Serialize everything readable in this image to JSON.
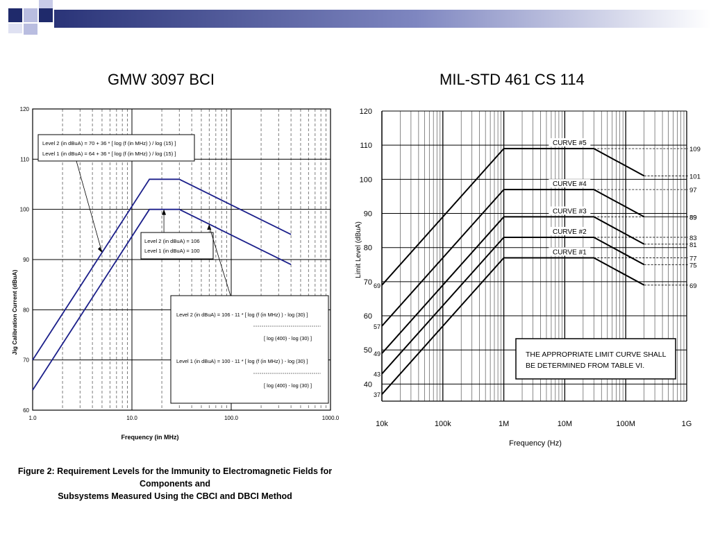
{
  "slide": {
    "title_left": "GMW 3097 BCI",
    "title_right": "MIL-STD 461 CS 114",
    "caption_line1": "Figure 2: Requirement Levels for the Immunity to Electromagnetic Fields for Components and",
    "caption_line2": "Subsystems Measured Using the CBCI and DBCI Method",
    "header_colors": {
      "navy": "#1f2a6b",
      "light": "#b9bde0",
      "mid": "#8a91c6"
    }
  },
  "chart_data": [
    {
      "type": "line",
      "title": "GMW 3097 BCI",
      "xlabel": "Frequency (in MHz)",
      "ylabel": "Jig Calibration Current (dBuA)",
      "xscale": "log",
      "xlim": [
        1.0,
        1000.0
      ],
      "ylim": [
        60,
        120
      ],
      "xticks": [
        "1.0",
        "10.0",
        "100.0",
        "1000.0"
      ],
      "yticks": [
        "60",
        "70",
        "80",
        "90",
        "100",
        "110",
        "120"
      ],
      "grid": true,
      "line_color": "#1b1f8a",
      "series": [
        {
          "name": "Level 2",
          "x": [
            1.0,
            15,
            30,
            400
          ],
          "y": [
            70,
            106,
            106,
            95
          ]
        },
        {
          "name": "Level 1",
          "x": [
            1.0,
            15,
            30,
            400
          ],
          "y": [
            64,
            100,
            100,
            89
          ]
        }
      ],
      "annotations": {
        "box1": [
          "Level 2 (in dBuA) = 70 + 36 *  [ log (f (in MHz) ) /  log (15) ]",
          "Level 1 (in dBuA) = 64 + 36 *  [ log (f (in MHz) ) /  log (15) ]"
        ],
        "box2": [
          "Level 2 (in dBuA) = 106",
          "Level 1 (in dBuA) = 100"
        ],
        "box3": [
          "Level 2 (in dBuA) = 106 - 11 * [ log (f (in MHz) ) - log (30) ]",
          "[ log (400) - log (30) ]",
          "Level 1 (in dBuA) = 100 - 11 * [ log (f (in MHz) ) - log (30) ]",
          "[ log (400) - log (30) ]"
        ]
      }
    },
    {
      "type": "line",
      "title": "MIL-STD 461 CS 114",
      "xlabel": "Frequency (Hz)",
      "ylabel": "Limit Level (dBuA)",
      "xscale": "log",
      "xlim": [
        10000,
        1000000000
      ],
      "ylim": [
        35,
        120
      ],
      "xticks": [
        "10k",
        "100k",
        "1M",
        "10M",
        "100M",
        "1G"
      ],
      "yticks": [
        "40",
        "50",
        "60",
        "70",
        "80",
        "90",
        "100",
        "110",
        "120"
      ],
      "grid": true,
      "series": [
        {
          "name": "CURVE #5",
          "x": [
            10000,
            1000000,
            30000000,
            200000000
          ],
          "y": [
            69,
            109,
            109,
            101
          ],
          "left_label": "69",
          "right_label": "109",
          "end_label": "101"
        },
        {
          "name": "CURVE #4",
          "x": [
            10000,
            1000000,
            30000000,
            200000000
          ],
          "y": [
            57,
            97,
            97,
            89
          ],
          "left_label": "57",
          "right_label": "97",
          "end_label": "89"
        },
        {
          "name": "CURVE #3",
          "x": [
            10000,
            1000000,
            30000000,
            200000000
          ],
          "y": [
            49,
            89,
            89,
            81
          ],
          "left_label": "49",
          "right_label": "89",
          "end_label": "81"
        },
        {
          "name": "CURVE #2",
          "x": [
            10000,
            1000000,
            30000000,
            200000000
          ],
          "y": [
            43,
            83,
            83,
            75
          ],
          "left_label": "43",
          "right_label": "83",
          "end_label": "75"
        },
        {
          "name": "CURVE #1",
          "x": [
            10000,
            1000000,
            30000000,
            200000000
          ],
          "y": [
            37,
            77,
            77,
            69
          ],
          "left_label": "37",
          "right_label": "77",
          "end_label": "69"
        }
      ],
      "note": [
        "THE APPROPRIATE LIMIT CURVE SHALL",
        "BE DETERMINED FROM TABLE VI."
      ]
    }
  ]
}
